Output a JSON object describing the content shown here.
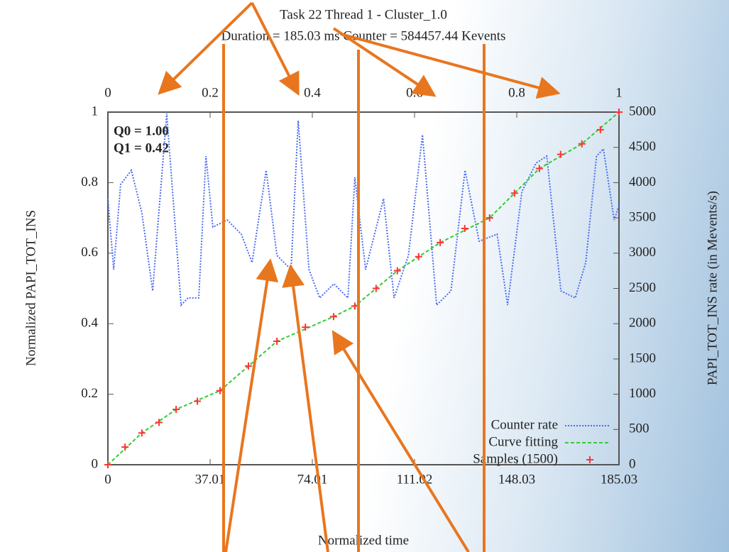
{
  "chart_data": {
    "type": "line",
    "title": "Task 22 Thread 1 - Cluster_1.0",
    "subtitle": "Duration = 185.03 ms Counter = 584457.44 Kevents",
    "xlabel": "Normalized time",
    "ylabel": "Normalized PAPI_TOT_INS",
    "y2label": "PAPI_TOT_INS rate (in Mevents/s)",
    "annotations": [
      "Q0 = 1.00",
      "Q1 = 0.42"
    ],
    "xlim": [
      0,
      185.03
    ],
    "xticks": [
      0,
      37.01,
      74.01,
      111.02,
      148.03,
      185.03
    ],
    "x2lim": [
      0,
      1
    ],
    "x2ticks": [
      0,
      0.2,
      0.4,
      0.6,
      0.8,
      1
    ],
    "ylim": [
      0,
      1
    ],
    "yticks": [
      0,
      0.2,
      0.4,
      0.6,
      0.8,
      1
    ],
    "y2lim": [
      0,
      5000
    ],
    "y2ticks": [
      0,
      500,
      1000,
      1500,
      2000,
      2500,
      3000,
      3500,
      4000,
      4500,
      5000
    ],
    "legend": "lower right",
    "series": [
      {
        "name": "Counter rate",
        "color": "#4a6cf0",
        "axis": "y2",
        "style": "dotted",
        "x": [
          0,
          2.1,
          4.6,
          8.5,
          12.3,
          16.2,
          21.3,
          26.5,
          29,
          32.9,
          35.5,
          38,
          43.2,
          48.3,
          52.2,
          57.3,
          61.2,
          66.3,
          68.9,
          72.8,
          76.7,
          81.8,
          86.9,
          89.4,
          93.3,
          99.8,
          103.6,
          108.8,
          113.9,
          119,
          124.2,
          129.3,
          134.4,
          140.9,
          144.7,
          149.9,
          155,
          158.9,
          164,
          169.2,
          173,
          176.9,
          179.4,
          183.3,
          185.03
        ],
        "values": [
          3773,
          2767,
          3974,
          4175,
          3571,
          2465,
          4980,
          2264,
          2365,
          2365,
          4376,
          3370,
          3470,
          3270,
          2867,
          4175,
          2968,
          2767,
          4879,
          2767,
          2365,
          2565,
          2365,
          4074,
          2767,
          3773,
          2365,
          2968,
          4678,
          2264,
          2465,
          4175,
          3169,
          3270,
          2264,
          3874,
          4276,
          4376,
          2465,
          2365,
          2867,
          4376,
          4477,
          3470,
          3672
        ]
      },
      {
        "name": "Curve fitting",
        "color": "#33cc33",
        "style": "dashed",
        "x": [
          0,
          12.3,
          24.7,
          40.6,
          61.2,
          81.7,
          89.4,
          104.8,
          120.3,
          138.2,
          156.2,
          171.6,
          185.03
        ],
        "values": [
          0,
          0.09,
          0.157,
          0.21,
          0.35,
          0.42,
          0.45,
          0.55,
          0.63,
          0.7,
          0.84,
          0.91,
          1
        ]
      },
      {
        "name": "Samples (1500)",
        "color": "#ff3333",
        "style": "markers",
        "x": [
          0,
          6.2,
          12.3,
          18.5,
          24.7,
          32.4,
          40.6,
          50.9,
          61.2,
          71.5,
          81.7,
          89.4,
          97.1,
          104.8,
          112.5,
          120.3,
          129.2,
          138.2,
          147.2,
          156.2,
          163.9,
          171.6,
          178.3,
          185.03
        ],
        "values": [
          0,
          0.05,
          0.09,
          0.12,
          0.157,
          0.18,
          0.21,
          0.28,
          0.35,
          0.39,
          0.42,
          0.45,
          0.5,
          0.55,
          0.59,
          0.63,
          0.67,
          0.7,
          0.77,
          0.84,
          0.88,
          0.91,
          0.95,
          1
        ]
      }
    ]
  }
}
